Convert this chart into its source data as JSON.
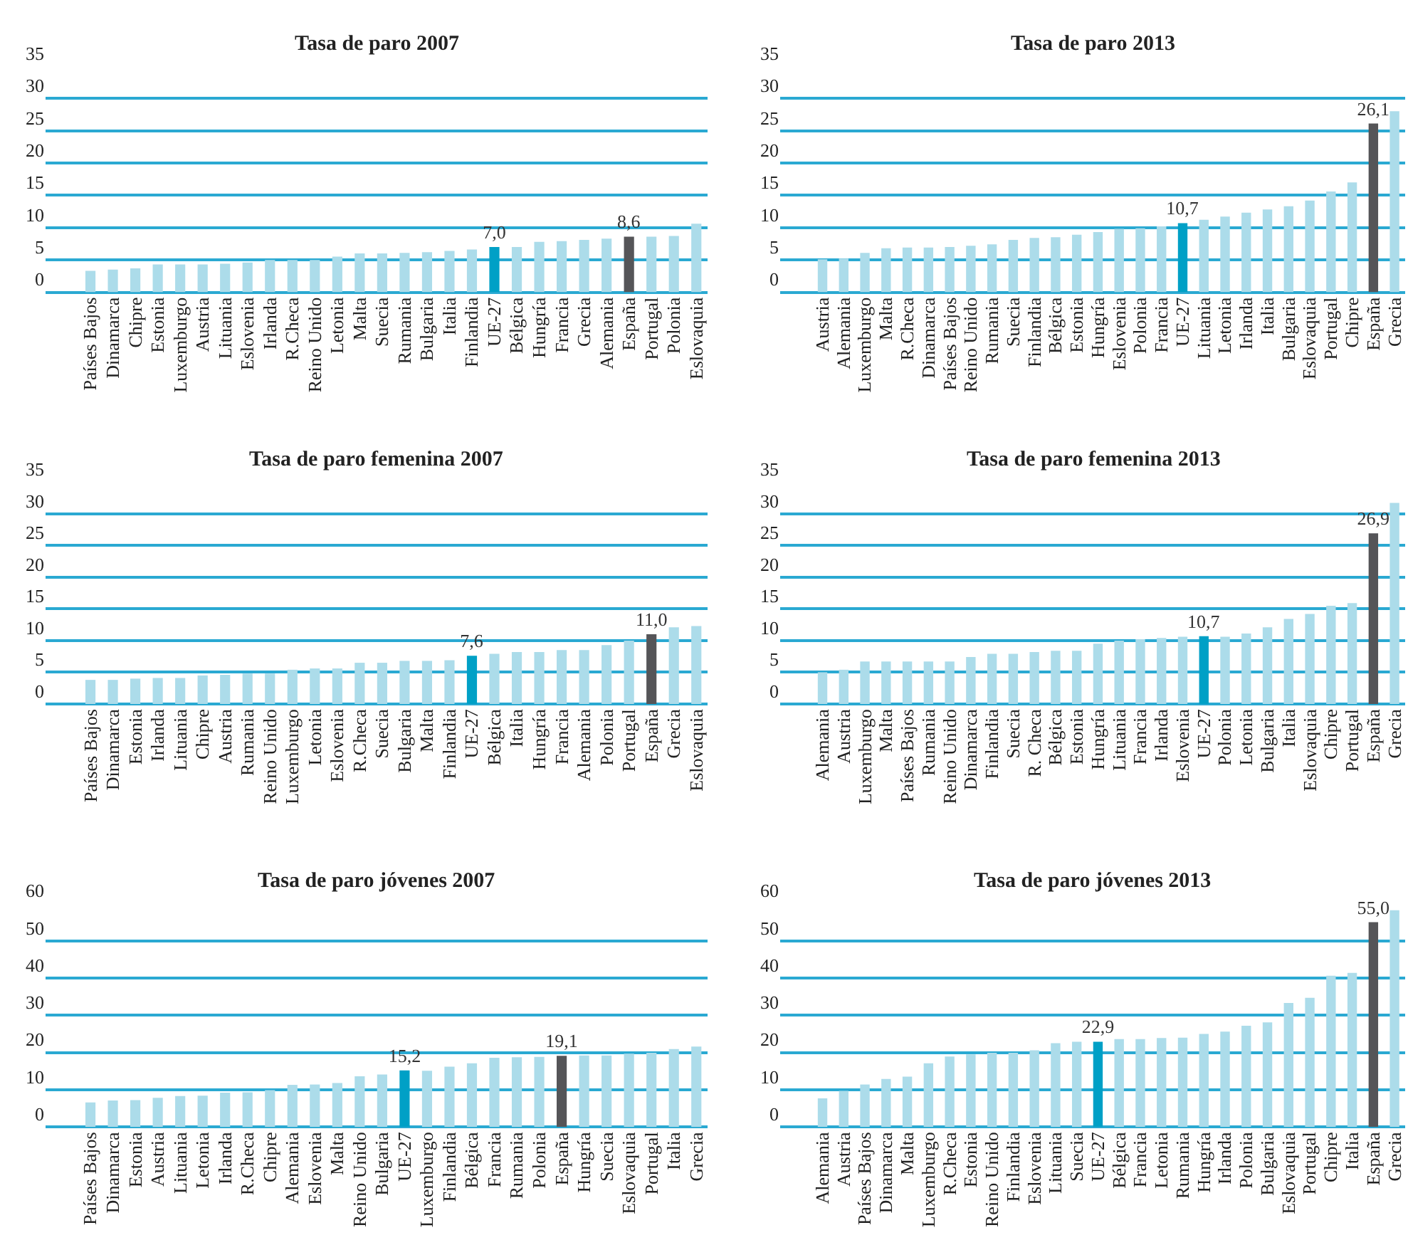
{
  "chart_data": [
    {
      "type": "bar",
      "title": "Tasa de paro 2007",
      "grid": "y",
      "ylim": [
        0,
        35
      ],
      "yticks": [
        0,
        5,
        10,
        15,
        20,
        25,
        30,
        35
      ],
      "categories": [
        "Países Bajos",
        "Dinamarca",
        "Chipre",
        "Estonia",
        "Luxemburgo",
        "Austria",
        "Lituania",
        "Eslovenia",
        "Irlanda",
        "R.Checa",
        "Reino Unido",
        "Letonia",
        "Malta",
        "Suecia",
        "Rumania",
        "Bulgaria",
        "Italia",
        "Finlandia",
        "UE-27",
        "Bélgica",
        "Hungría",
        "Francia",
        "Grecia",
        "Alemania",
        "España",
        "Portugal",
        "Polonia",
        "Eslovaquia"
      ],
      "values": [
        3.3,
        3.5,
        3.7,
        4.3,
        4.3,
        4.3,
        4.4,
        4.6,
        5.0,
        5.0,
        5.0,
        5.5,
        6.0,
        6.0,
        6.1,
        6.2,
        6.4,
        6.6,
        7.0,
        7.0,
        7.8,
        7.9,
        8.1,
        8.3,
        8.6,
        8.6,
        8.7,
        10.6
      ],
      "colors": [
        "#acdcea",
        "#acdcea",
        "#acdcea",
        "#acdcea",
        "#acdcea",
        "#acdcea",
        "#acdcea",
        "#acdcea",
        "#acdcea",
        "#acdcea",
        "#acdcea",
        "#acdcea",
        "#acdcea",
        "#acdcea",
        "#acdcea",
        "#acdcea",
        "#acdcea",
        "#acdcea",
        "#00a0c6",
        "#acdcea",
        "#acdcea",
        "#acdcea",
        "#acdcea",
        "#acdcea",
        "#555558",
        "#acdcea",
        "#acdcea",
        "#acdcea"
      ],
      "value_labels": [
        null,
        null,
        null,
        null,
        null,
        null,
        null,
        null,
        null,
        null,
        null,
        null,
        null,
        null,
        null,
        null,
        null,
        null,
        "7,0",
        null,
        null,
        null,
        null,
        null,
        "8,6",
        null,
        null,
        null
      ]
    },
    {
      "type": "bar",
      "title": "Tasa de paro 2013",
      "grid": "y",
      "ylim": [
        0,
        35
      ],
      "yticks": [
        0,
        5,
        10,
        15,
        20,
        25,
        30,
        35
      ],
      "categories": [
        "Austria",
        "Alemania",
        "Luxemburgo",
        "Malta",
        "R.Checa",
        "Dinamarca",
        "Países Bajos",
        "Reino Unido",
        "Rumania",
        "Suecia",
        "Finlandia",
        "Bélgica",
        "Estonia",
        "Hungría",
        "Eslovenia",
        "Polonia",
        "Francia",
        "UE-27",
        "Lituania",
        "Letonia",
        "Irlanda",
        "Italia",
        "Bulgaria",
        "Eslovaquia",
        "Portugal",
        "Chipre",
        "España",
        "Grecia"
      ],
      "values": [
        5.1,
        5.2,
        6.1,
        6.8,
        6.9,
        6.9,
        7.0,
        7.2,
        7.4,
        8.1,
        8.4,
        8.5,
        8.9,
        9.3,
        9.8,
        9.9,
        10.2,
        10.7,
        11.2,
        11.7,
        12.3,
        12.8,
        13.3,
        14.2,
        15.6,
        17.0,
        26.1,
        28.0
      ],
      "colors": [
        "#acdcea",
        "#acdcea",
        "#acdcea",
        "#acdcea",
        "#acdcea",
        "#acdcea",
        "#acdcea",
        "#acdcea",
        "#acdcea",
        "#acdcea",
        "#acdcea",
        "#acdcea",
        "#acdcea",
        "#acdcea",
        "#acdcea",
        "#acdcea",
        "#acdcea",
        "#00a0c6",
        "#acdcea",
        "#acdcea",
        "#acdcea",
        "#acdcea",
        "#acdcea",
        "#acdcea",
        "#acdcea",
        "#acdcea",
        "#555558",
        "#acdcea"
      ],
      "value_labels": [
        null,
        null,
        null,
        null,
        null,
        null,
        null,
        null,
        null,
        null,
        null,
        null,
        null,
        null,
        null,
        null,
        null,
        "10,7",
        null,
        null,
        null,
        null,
        null,
        null,
        null,
        null,
        "26,1",
        null
      ]
    },
    {
      "type": "bar",
      "title": "Tasa de paro femenina 2007",
      "grid": "y",
      "ylim": [
        0,
        35
      ],
      "yticks": [
        0,
        5,
        10,
        15,
        20,
        25,
        30,
        35
      ],
      "categories": [
        "Países Bajos",
        "Dinamarca",
        "Estonia",
        "Irlanda",
        "Lituania",
        "Chipre",
        "Austria",
        "Rumania",
        "Reino Unido",
        "Luxemburgo",
        "Letonia",
        "Eslovenia",
        "R.Checa",
        "Suecia",
        "Bulgaria",
        "Malta",
        "Finlandia",
        "UE-27",
        "Bélgica",
        "Italia",
        "Hungría",
        "Francia",
        "Alemania",
        "Polonia",
        "Portugal",
        "España",
        "Grecia",
        "Eslovaquia"
      ],
      "values": [
        3.8,
        3.8,
        4.0,
        4.1,
        4.1,
        4.5,
        4.6,
        4.8,
        4.8,
        5.4,
        5.6,
        5.6,
        6.5,
        6.5,
        6.8,
        6.8,
        6.9,
        7.6,
        7.9,
        8.2,
        8.2,
        8.5,
        8.5,
        9.3,
        10.0,
        11.0,
        12.1,
        12.3
      ],
      "colors": [
        "#acdcea",
        "#acdcea",
        "#acdcea",
        "#acdcea",
        "#acdcea",
        "#acdcea",
        "#acdcea",
        "#acdcea",
        "#acdcea",
        "#acdcea",
        "#acdcea",
        "#acdcea",
        "#acdcea",
        "#acdcea",
        "#acdcea",
        "#acdcea",
        "#acdcea",
        "#00a0c6",
        "#acdcea",
        "#acdcea",
        "#acdcea",
        "#acdcea",
        "#acdcea",
        "#acdcea",
        "#acdcea",
        "#555558",
        "#acdcea",
        "#acdcea"
      ],
      "value_labels": [
        null,
        null,
        null,
        null,
        null,
        null,
        null,
        null,
        null,
        null,
        null,
        null,
        null,
        null,
        null,
        null,
        null,
        "7,6",
        null,
        null,
        null,
        null,
        null,
        null,
        null,
        "11,0",
        null,
        null
      ]
    },
    {
      "type": "bar",
      "title": "Tasa de paro femenina 2013",
      "grid": "y",
      "ylim": [
        0,
        35
      ],
      "yticks": [
        0,
        5,
        10,
        15,
        20,
        25,
        30,
        35
      ],
      "categories": [
        "Alemania",
        "Austria",
        "Luxemburgo",
        "Malta",
        "Países Bajos",
        "Rumania",
        "Reino Unido",
        "Dinamarca",
        "Finlandia",
        "Suecia",
        "R. Checa",
        "Bélgica",
        "Estonia",
        "Hungría",
        "Lituania",
        "Francia",
        "Irlanda",
        "Eslovenia",
        "UE-27",
        "Polonia",
        "Letonia",
        "Bulgaria",
        "Italia",
        "Eslovaquia",
        "Chipre",
        "Portugal",
        "España",
        "Grecia"
      ],
      "values": [
        5.0,
        5.4,
        6.7,
        6.7,
        6.7,
        6.7,
        6.7,
        7.4,
        7.9,
        7.9,
        8.2,
        8.4,
        8.4,
        9.5,
        10.0,
        10.2,
        10.4,
        10.6,
        10.7,
        10.6,
        11.1,
        12.1,
        13.4,
        14.2,
        15.5,
        15.9,
        26.9,
        31.7
      ],
      "colors": [
        "#acdcea",
        "#acdcea",
        "#acdcea",
        "#acdcea",
        "#acdcea",
        "#acdcea",
        "#acdcea",
        "#acdcea",
        "#acdcea",
        "#acdcea",
        "#acdcea",
        "#acdcea",
        "#acdcea",
        "#acdcea",
        "#acdcea",
        "#acdcea",
        "#acdcea",
        "#acdcea",
        "#00a0c6",
        "#acdcea",
        "#acdcea",
        "#acdcea",
        "#acdcea",
        "#acdcea",
        "#acdcea",
        "#acdcea",
        "#555558",
        "#acdcea"
      ],
      "value_labels": [
        null,
        null,
        null,
        null,
        null,
        null,
        null,
        null,
        null,
        null,
        null,
        null,
        null,
        null,
        null,
        null,
        null,
        null,
        "10,7",
        null,
        null,
        null,
        null,
        null,
        null,
        null,
        "26,9",
        null
      ]
    },
    {
      "type": "bar",
      "title": "Tasa de paro jóvenes 2007",
      "grid": "y",
      "ylim": [
        0,
        60
      ],
      "yticks": [
        0,
        10,
        20,
        30,
        40,
        50,
        60
      ],
      "categories": [
        "Países Bajos",
        "Dinamarca",
        "Estonia",
        "Austria",
        "Lituania",
        "Letonia",
        "Irlanda",
        "R.Checa",
        "Chipre",
        "Alemania",
        "Eslovenia",
        "Malta",
        "Reino Unido",
        "Bulgaria",
        "UE-27",
        "Luxemburgo",
        "Finlandia",
        "Bélgica",
        "Francia",
        "Rumania",
        "Polonia",
        "España",
        "Hungría",
        "Suecia",
        "Eslovaquia",
        "Portugal",
        "Italia",
        "Grecia"
      ],
      "values": [
        6.6,
        7.1,
        7.2,
        7.8,
        8.3,
        8.4,
        9.2,
        9.3,
        9.9,
        11.3,
        11.4,
        11.8,
        13.6,
        14.1,
        15.2,
        15.1,
        16.2,
        17.1,
        18.6,
        18.7,
        18.8,
        19.1,
        19.2,
        19.2,
        19.7,
        19.9,
        20.9,
        21.6
      ],
      "colors": [
        "#acdcea",
        "#acdcea",
        "#acdcea",
        "#acdcea",
        "#acdcea",
        "#acdcea",
        "#acdcea",
        "#acdcea",
        "#acdcea",
        "#acdcea",
        "#acdcea",
        "#acdcea",
        "#acdcea",
        "#acdcea",
        "#00a0c6",
        "#acdcea",
        "#acdcea",
        "#acdcea",
        "#acdcea",
        "#acdcea",
        "#acdcea",
        "#555558",
        "#acdcea",
        "#acdcea",
        "#acdcea",
        "#acdcea",
        "#acdcea",
        "#acdcea"
      ],
      "value_labels": [
        null,
        null,
        null,
        null,
        null,
        null,
        null,
        null,
        null,
        null,
        null,
        null,
        null,
        null,
        "15,2",
        null,
        null,
        null,
        null,
        null,
        null,
        "19,1",
        null,
        null,
        null,
        null,
        null,
        null
      ]
    },
    {
      "type": "bar",
      "title": "Tasa de paro jóvenes 2013",
      "grid": "y",
      "ylim": [
        0,
        60
      ],
      "yticks": [
        0,
        10,
        20,
        30,
        40,
        50,
        60
      ],
      "categories": [
        "Alemania",
        "Austria",
        "Países Bajos",
        "Dinamarca",
        "Malta",
        "Luxemburgo",
        "R.Checa",
        "Estonia",
        "Reino Unido",
        "Finlandia",
        "Eslovenia",
        "Lituania",
        "Suecia",
        "UE-27",
        "Bélgica",
        "Francia",
        "Letonia",
        "Rumania",
        "Hungría",
        "Irlanda",
        "Polonia",
        "Bulgaria",
        "Eslovaquia",
        "Portugal",
        "Chipre",
        "Italia",
        "España",
        "Grecia"
      ],
      "values": [
        7.7,
        9.7,
        11.4,
        12.9,
        13.5,
        17.1,
        18.9,
        19.5,
        19.9,
        19.9,
        20.6,
        22.5,
        22.9,
        22.9,
        23.6,
        23.6,
        23.9,
        24.0,
        25.0,
        25.6,
        27.2,
        28.1,
        33.3,
        34.7,
        40.6,
        41.4,
        55.0,
        58.2
      ],
      "colors": [
        "#acdcea",
        "#acdcea",
        "#acdcea",
        "#acdcea",
        "#acdcea",
        "#acdcea",
        "#acdcea",
        "#acdcea",
        "#acdcea",
        "#acdcea",
        "#acdcea",
        "#acdcea",
        "#acdcea",
        "#00a0c6",
        "#acdcea",
        "#acdcea",
        "#acdcea",
        "#acdcea",
        "#acdcea",
        "#acdcea",
        "#acdcea",
        "#acdcea",
        "#acdcea",
        "#acdcea",
        "#acdcea",
        "#acdcea",
        "#555558",
        "#acdcea"
      ],
      "value_labels": [
        null,
        null,
        null,
        null,
        null,
        null,
        null,
        null,
        null,
        null,
        null,
        null,
        null,
        "22,9",
        null,
        null,
        null,
        null,
        null,
        null,
        null,
        null,
        null,
        null,
        null,
        null,
        "55,0",
        null
      ]
    }
  ]
}
